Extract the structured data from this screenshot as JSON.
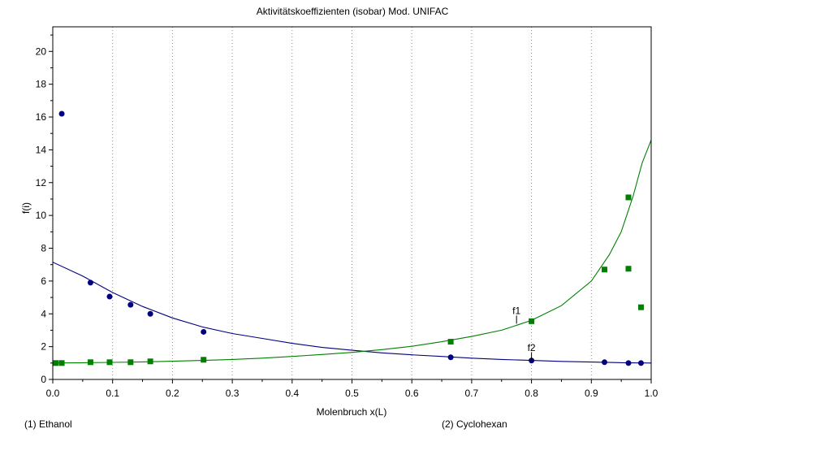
{
  "chart_data": {
    "type": "scatter",
    "title": "Aktivitätskoeffizienten  (isobar)  Mod. UNIFAC",
    "xlabel": "Molenbruch x(L)",
    "ylabel": "f(i)",
    "xlim": [
      0,
      1
    ],
    "ylim": [
      0,
      21.5
    ],
    "x_ticks": [
      "0.0",
      "0.1",
      "0.2",
      "0.3",
      "0.4",
      "0.5",
      "0.6",
      "0.7",
      "0.8",
      "0.9",
      "1.0"
    ],
    "y_ticks": [
      "0",
      "2",
      "4",
      "6",
      "8",
      "10",
      "12",
      "14",
      "16",
      "18",
      "20"
    ],
    "grid": "vertical dotted",
    "components": [
      "(1) Ethanol",
      "(2) Cyclohexan"
    ],
    "series": [
      {
        "name": "f1",
        "color": "#000080",
        "marker": "circle",
        "points": [
          {
            "x": 0.015,
            "y": 16.2
          },
          {
            "x": 0.063,
            "y": 5.9
          },
          {
            "x": 0.095,
            "y": 5.05
          },
          {
            "x": 0.13,
            "y": 4.55
          },
          {
            "x": 0.163,
            "y": 4.0
          },
          {
            "x": 0.252,
            "y": 2.9
          },
          {
            "x": 0.665,
            "y": 1.35
          },
          {
            "x": 0.8,
            "y": 1.15
          },
          {
            "x": 0.922,
            "y": 1.05
          },
          {
            "x": 0.962,
            "y": 1.0
          },
          {
            "x": 0.983,
            "y": 1.0
          }
        ],
        "curve": [
          {
            "x": 0.0,
            "y": 7.15
          },
          {
            "x": 0.05,
            "y": 6.3
          },
          {
            "x": 0.1,
            "y": 5.3
          },
          {
            "x": 0.15,
            "y": 4.45
          },
          {
            "x": 0.2,
            "y": 3.75
          },
          {
            "x": 0.25,
            "y": 3.2
          },
          {
            "x": 0.3,
            "y": 2.8
          },
          {
            "x": 0.35,
            "y": 2.5
          },
          {
            "x": 0.4,
            "y": 2.2
          },
          {
            "x": 0.45,
            "y": 1.95
          },
          {
            "x": 0.5,
            "y": 1.78
          },
          {
            "x": 0.55,
            "y": 1.62
          },
          {
            "x": 0.6,
            "y": 1.5
          },
          {
            "x": 0.65,
            "y": 1.4
          },
          {
            "x": 0.7,
            "y": 1.3
          },
          {
            "x": 0.75,
            "y": 1.22
          },
          {
            "x": 0.8,
            "y": 1.16
          },
          {
            "x": 0.85,
            "y": 1.1
          },
          {
            "x": 0.9,
            "y": 1.06
          },
          {
            "x": 0.95,
            "y": 1.02
          },
          {
            "x": 1.0,
            "y": 1.0
          }
        ]
      },
      {
        "name": "f2",
        "color": "#008000",
        "marker": "square",
        "points": [
          {
            "x": 0.005,
            "y": 1.0
          },
          {
            "x": 0.015,
            "y": 1.0
          },
          {
            "x": 0.063,
            "y": 1.05
          },
          {
            "x": 0.095,
            "y": 1.05
          },
          {
            "x": 0.13,
            "y": 1.05
          },
          {
            "x": 0.163,
            "y": 1.1
          },
          {
            "x": 0.252,
            "y": 1.2
          },
          {
            "x": 0.665,
            "y": 2.3
          },
          {
            "x": 0.8,
            "y": 3.55
          },
          {
            "x": 0.922,
            "y": 6.7
          },
          {
            "x": 0.962,
            "y": 6.75
          },
          {
            "x": 0.962,
            "y": 11.1
          },
          {
            "x": 0.983,
            "y": 4.4
          }
        ],
        "curve": [
          {
            "x": 0.0,
            "y": 1.0
          },
          {
            "x": 0.05,
            "y": 1.02
          },
          {
            "x": 0.1,
            "y": 1.04
          },
          {
            "x": 0.15,
            "y": 1.07
          },
          {
            "x": 0.2,
            "y": 1.11
          },
          {
            "x": 0.25,
            "y": 1.16
          },
          {
            "x": 0.3,
            "y": 1.22
          },
          {
            "x": 0.35,
            "y": 1.3
          },
          {
            "x": 0.4,
            "y": 1.4
          },
          {
            "x": 0.45,
            "y": 1.52
          },
          {
            "x": 0.5,
            "y": 1.65
          },
          {
            "x": 0.55,
            "y": 1.82
          },
          {
            "x": 0.6,
            "y": 2.02
          },
          {
            "x": 0.65,
            "y": 2.3
          },
          {
            "x": 0.7,
            "y": 2.62
          },
          {
            "x": 0.75,
            "y": 3.0
          },
          {
            "x": 0.8,
            "y": 3.6
          },
          {
            "x": 0.85,
            "y": 4.5
          },
          {
            "x": 0.9,
            "y": 6.0
          },
          {
            "x": 0.93,
            "y": 7.6
          },
          {
            "x": 0.95,
            "y": 9.0
          },
          {
            "x": 0.97,
            "y": 11.2
          },
          {
            "x": 0.985,
            "y": 13.2
          },
          {
            "x": 1.0,
            "y": 14.6
          }
        ]
      }
    ],
    "annotations": [
      {
        "text": "f1",
        "x": 0.775,
        "y": 3.4
      },
      {
        "text": "f2",
        "x": 0.8,
        "y": 1.15
      }
    ]
  }
}
